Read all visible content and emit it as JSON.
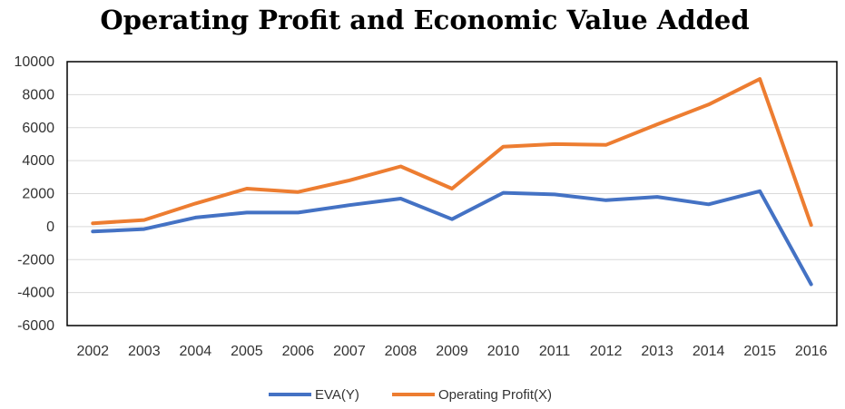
{
  "chart_data": {
    "type": "line",
    "title": "Operating Profit and Economic Value Added",
    "xlabel": "",
    "ylabel": "",
    "categories": [
      "2002",
      "2003",
      "2004",
      "2005",
      "2006",
      "2007",
      "2008",
      "2009",
      "2010",
      "2011",
      "2012",
      "2013",
      "2014",
      "2015",
      "2016"
    ],
    "ylim": [
      -6000,
      10000
    ],
    "yticks": [
      10000,
      8000,
      6000,
      4000,
      2000,
      0,
      -2000,
      -4000,
      -6000
    ],
    "ytick_labels": [
      "10000",
      "8000",
      "6000",
      "4000",
      "2000",
      "0",
      "-2000",
      "-4000",
      "-6000"
    ],
    "grid": true,
    "legend_position": "bottom",
    "series": [
      {
        "name": "EVA(Y)",
        "color": "#4472C4",
        "values": [
          -300,
          -150,
          550,
          850,
          850,
          1300,
          1700,
          450,
          2050,
          1950,
          1600,
          1800,
          1350,
          2150,
          -3500
        ]
      },
      {
        "name": "Operating Profit(X)",
        "color": "#ED7D31",
        "values": [
          200,
          400,
          1400,
          2300,
          2100,
          2800,
          3650,
          2300,
          4850,
          5000,
          4950,
          6200,
          7400,
          8950,
          100
        ]
      }
    ]
  }
}
